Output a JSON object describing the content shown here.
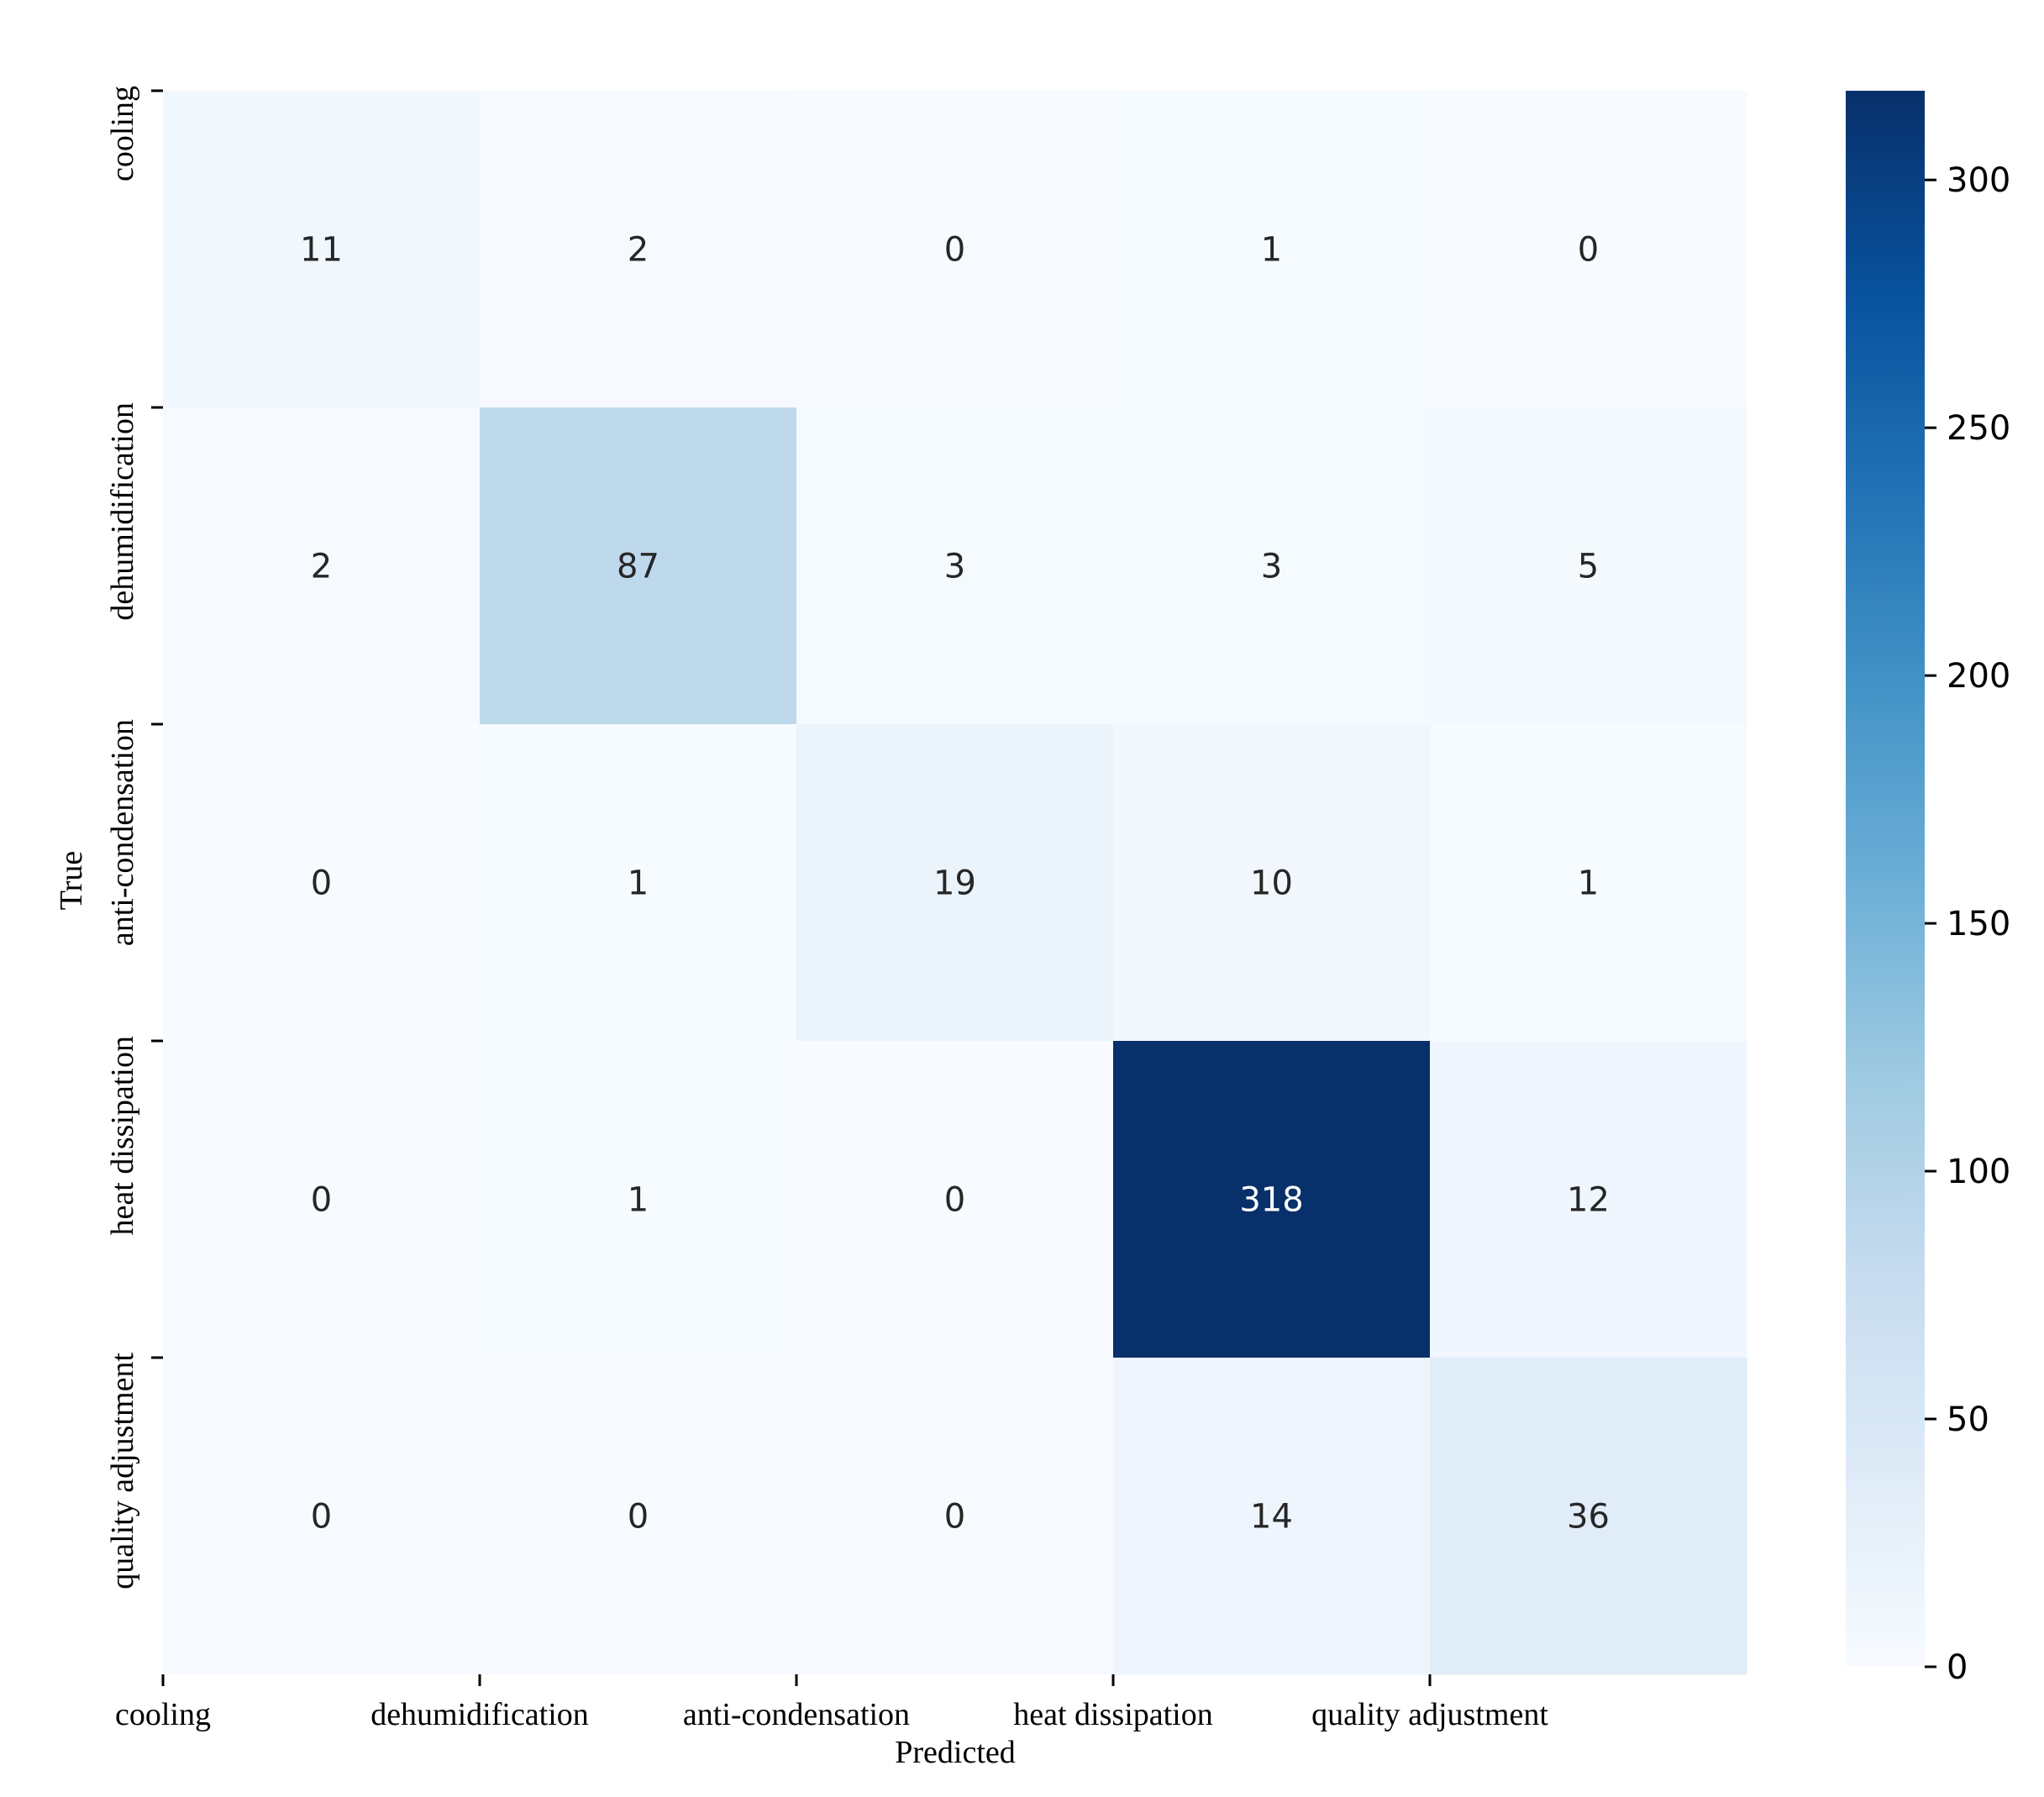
{
  "chart_data": {
    "type": "heatmap",
    "title": "",
    "xlabel": "Predicted",
    "ylabel": "True",
    "x_categories": [
      "cooling",
      "dehumidification",
      "anti-condensation",
      "heat dissipation",
      "quality adjustment"
    ],
    "y_categories": [
      "cooling",
      "dehumidification",
      "anti-condensation",
      "heat dissipation",
      "quality adjustment"
    ],
    "matrix": [
      [
        11,
        2,
        0,
        1,
        0
      ],
      [
        2,
        87,
        3,
        3,
        5
      ],
      [
        0,
        1,
        19,
        10,
        1
      ],
      [
        0,
        1,
        0,
        318,
        12
      ],
      [
        0,
        0,
        0,
        14,
        36
      ]
    ],
    "colorbar": {
      "colormap": "Blues",
      "vmin": 0,
      "vmax": 318,
      "ticks": [
        0,
        50,
        100,
        150,
        200,
        250,
        300
      ]
    },
    "grid": false,
    "legend": "colorbar-right"
  }
}
